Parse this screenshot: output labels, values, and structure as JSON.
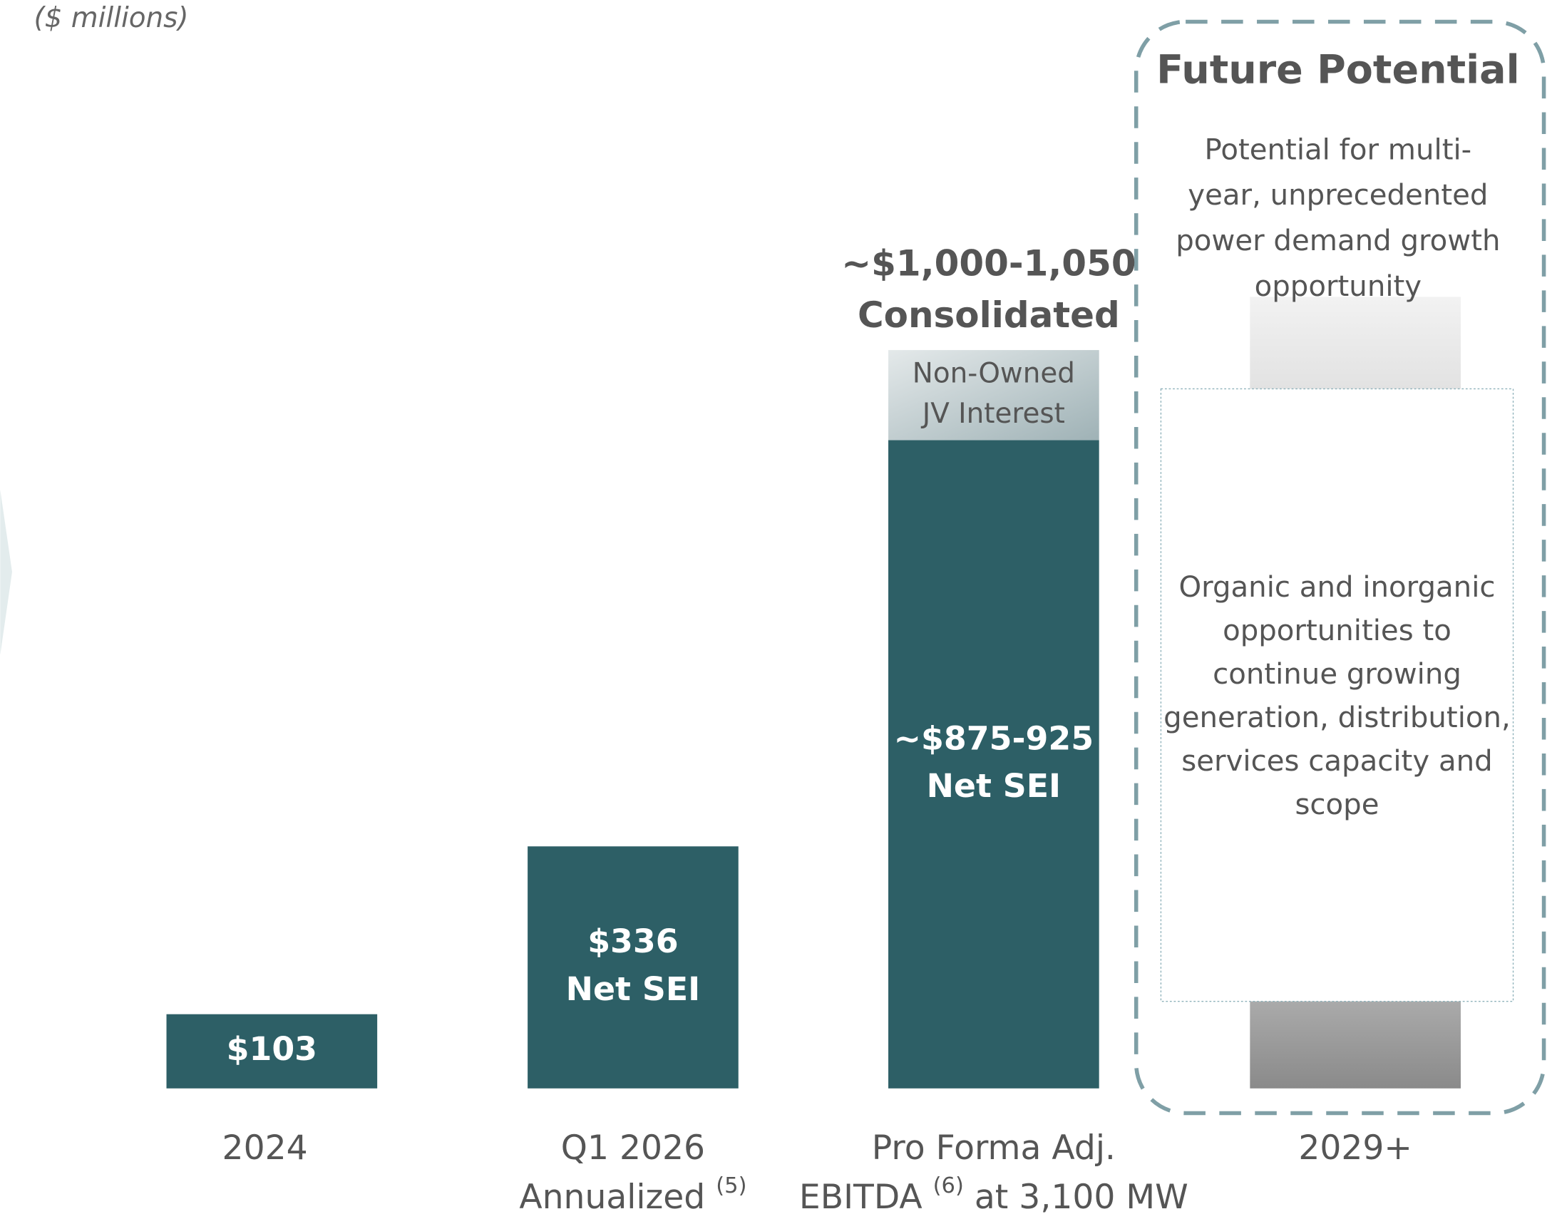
{
  "chart_data": {
    "type": "bar",
    "subtitle": "($ millions)",
    "categories": [
      [
        "2024"
      ],
      [
        "Q1 2026",
        "Annualized"
      ],
      [
        "Pro Forma Adj.",
        "EBITDA",
        "at 3,100 MW"
      ],
      [
        "2029+"
      ]
    ],
    "category_notes": [
      null,
      "(5)",
      "(6)",
      null
    ],
    "ylim": [
      0,
      1500
    ],
    "series": [
      {
        "color": "#2d5f66",
        "values": [
          103,
          336,
          900,
          null
        ],
        "value_labels": [
          [
            "$103"
          ],
          [
            "$336",
            "Net SEI"
          ],
          [
            "~$875-925",
            "Net SEI"
          ],
          null
        ]
      },
      {
        "color": "#b9c7ca",
        "values": [
          null,
          null,
          125,
          null
        ],
        "value_labels": [
          null,
          null,
          [
            "Non-Owned",
            "JV Interest"
          ],
          null
        ]
      }
    ],
    "total_labels": [
      null,
      null,
      [
        "~$1,000-1,050",
        "Consolidated"
      ],
      null
    ]
  },
  "future": {
    "title": "Future Potential",
    "lines": [
      "Potential for multi-",
      "year, unprecedented",
      "power demand growth",
      "opportunity"
    ],
    "body": [
      "Organic and inorganic",
      "opportunities to",
      "continue growing",
      "generation, distribution,",
      "services capacity and",
      "scope"
    ]
  }
}
